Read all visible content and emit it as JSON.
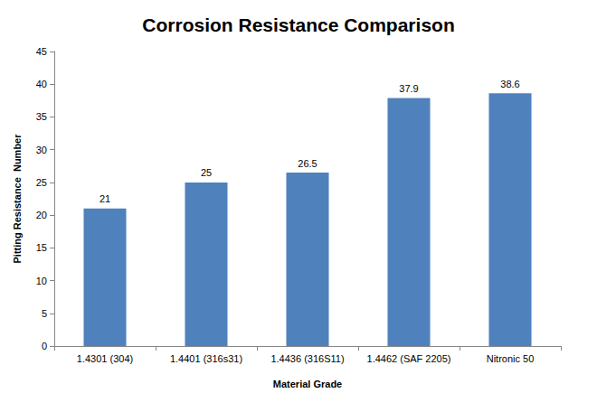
{
  "chart_data": {
    "type": "bar",
    "title": "Corrosion Resistance Comparison",
    "x_label": "Material Grade",
    "y_label": "Pitting Resistance  Number",
    "categories": [
      "1.4301 (304)",
      "1.4401 (316s31)",
      "1.4436 (316S11)",
      "1.4462 (SAF 2205)",
      "Nitronic 50"
    ],
    "values": [
      21,
      25,
      26.5,
      37.9,
      38.6
    ],
    "color": "#4f81bd",
    "ylim": [
      0,
      45
    ],
    "yticks": [
      0,
      5,
      10,
      15,
      20,
      25,
      30,
      35,
      40,
      45
    ],
    "grid": false,
    "data_labels": true
  }
}
